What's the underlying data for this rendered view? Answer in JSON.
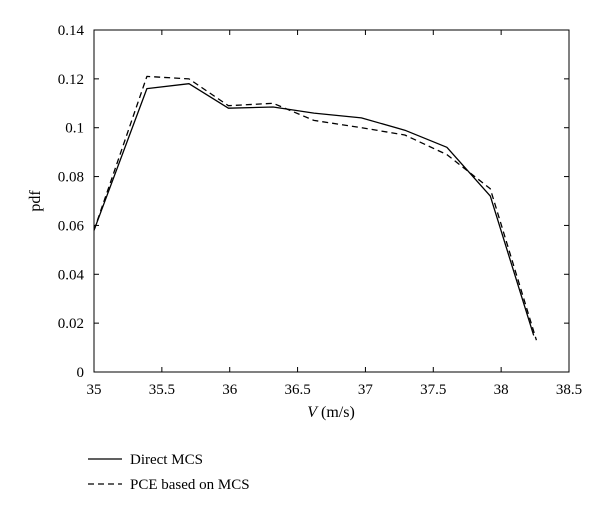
{
  "chart_data": {
    "type": "line",
    "xlabel_var": "V",
    "xlabel_unit": " (m/s)",
    "ylabel": "pdf",
    "xlim": [
      35,
      38.5
    ],
    "ylim": [
      0,
      0.14
    ],
    "xticks": [
      "35",
      "35.5",
      "36",
      "36.5",
      "37",
      "37.5",
      "38",
      "38.5"
    ],
    "yticks": [
      "0",
      "0.02",
      "0.04",
      "0.06",
      "0.08",
      "0.1",
      "0.12",
      "0.14"
    ],
    "grid": false,
    "legend_placement": "below",
    "series": [
      {
        "name": "Direct MCS",
        "style": "solid",
        "x": [
          35.0,
          35.39,
          35.7,
          35.99,
          36.32,
          36.62,
          36.97,
          37.29,
          37.6,
          37.92,
          38.24
        ],
        "y": [
          0.058,
          0.116,
          0.118,
          0.108,
          0.1085,
          0.106,
          0.104,
          0.099,
          0.092,
          0.072,
          0.015
        ]
      },
      {
        "name": "PCE based on MCS",
        "style": "dashed",
        "x": [
          35.0,
          35.39,
          35.7,
          35.99,
          36.32,
          36.62,
          36.97,
          37.29,
          37.6,
          37.92,
          38.26
        ],
        "y": [
          0.058,
          0.121,
          0.12,
          0.109,
          0.11,
          0.103,
          0.1,
          0.097,
          0.089,
          0.075,
          0.013
        ]
      }
    ]
  }
}
